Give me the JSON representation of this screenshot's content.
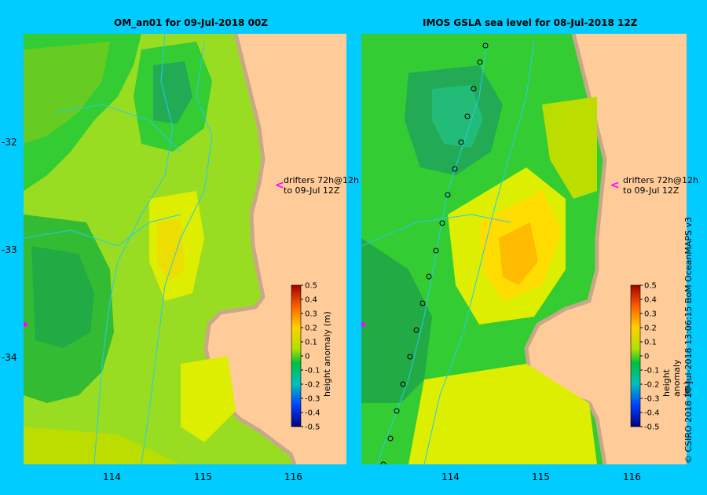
{
  "panels": [
    {
      "title": "OM_an01  for 09-Jul-2018 00Z",
      "drifter_note": [
        "drifters 72h@12h",
        "to 09-Jul 12Z"
      ]
    },
    {
      "title": "IMOS GSLA sea level  for 08-Jul-2018 12Z",
      "drifter_note": [
        "drifters 72h@12h",
        "to 09-Jul 12Z"
      ]
    }
  ],
  "axes": {
    "lon_ticks": [
      "114",
      "115",
      "116"
    ],
    "lat_ticks": [
      "-32",
      "-33",
      "-34"
    ]
  },
  "colorbar": {
    "label": "height anomaly (m)",
    "ticks": [
      "0.5",
      "0.4",
      "0.3",
      "0.2",
      "0.1",
      "0",
      "-0.1",
      "-0.2",
      "-0.3",
      "-0.4",
      "-0.5"
    ],
    "range": [
      -0.5,
      0.5
    ]
  },
  "credit": "© CSIRO 2018   20-Jul-2018 13:06:15 BoM OceanMAPS v3",
  "colors": {
    "background": "#00ccff",
    "land": "#ffcc99",
    "coast": "#c8a888"
  }
}
